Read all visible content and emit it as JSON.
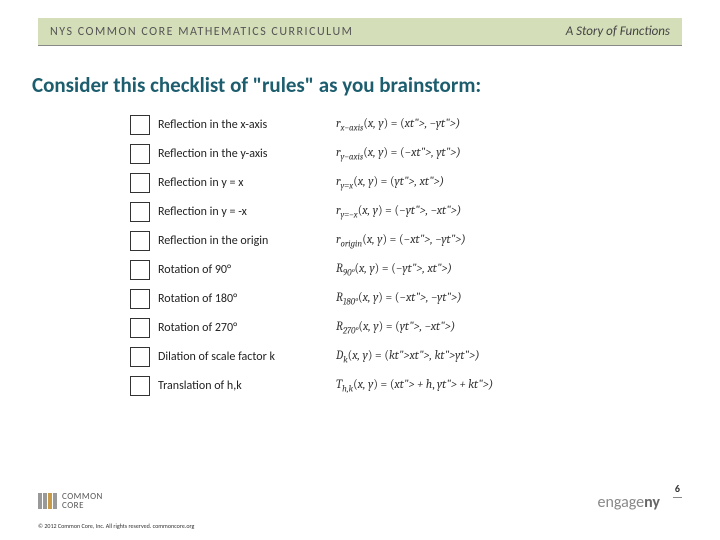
{
  "header": {
    "left": "NYS COMMON CORE MATHEMATICS CURRICULUM",
    "right": "A Story of Functions"
  },
  "title": "Consider this checklist of \"rules\" as you brainstorm:",
  "rules": [
    {
      "label": "Reflection in the x-axis",
      "sub": "x−axis",
      "prefix": "r",
      "rhs": "(x, −y)"
    },
    {
      "label": "Reflection in the y-axis",
      "sub": "y−axis",
      "prefix": "r",
      "rhs": "(−x, y)"
    },
    {
      "label": "Reflection in y = x",
      "sub": "y=x",
      "prefix": "r",
      "rhs": "(y, x)"
    },
    {
      "label": "Reflection in y = -x",
      "sub": "y=−x",
      "prefix": "r",
      "rhs": "(−y, −x)"
    },
    {
      "label": "Reflection in the origin",
      "sub": "origin",
      "prefix": "r",
      "rhs": "(−x, −y)"
    },
    {
      "label": "Rotation of 90°",
      "sub": "90°",
      "prefix": "R",
      "rhs": "(−y, x)"
    },
    {
      "label": "Rotation of 180°",
      "sub": "180°",
      "prefix": "R",
      "rhs": "(−x, −y)"
    },
    {
      "label": "Rotation of 270°",
      "sub": "270°",
      "prefix": "R",
      "rhs": "(y, −x)"
    },
    {
      "label": "Dilation of scale factor k",
      "sub": "k",
      "prefix": "D",
      "rhs": "(kx, ky)"
    },
    {
      "label": "Translation of h,k",
      "sub": "h,k",
      "prefix": "T",
      "rhs": "(x + h, y + k)"
    }
  ],
  "footer": {
    "logo_top": "COMMON",
    "logo_bottom": "CORE",
    "copyright": "© 2012 Common Core, Inc. All rights reserved. commoncore.org",
    "engage_text": "engage",
    "engage_suffix": "ny",
    "page": "6"
  },
  "colors": {
    "header_bg": "#d4deb9",
    "title_color": "#1c5d6e"
  }
}
